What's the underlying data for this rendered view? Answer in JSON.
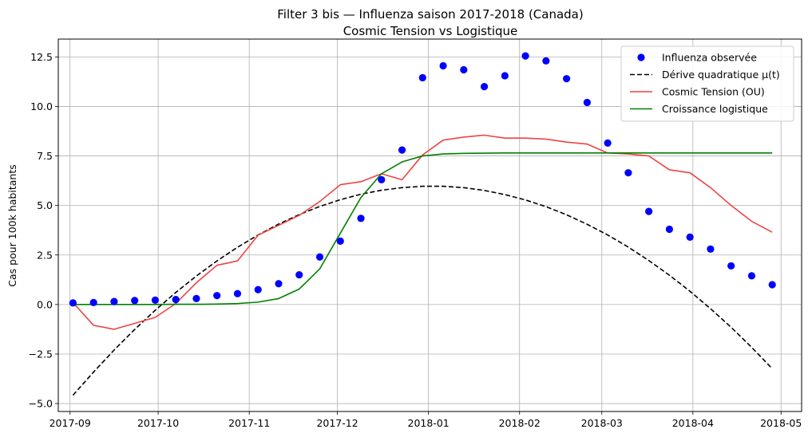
{
  "chart_data": {
    "type": "line",
    "title": "Filter 3 bis — Influenza saison 2017-2018 (Canada)",
    "subtitle": "Cosmic Tension vs Logistique",
    "xlabel": "",
    "ylabel": "Cas pour 100k habitants",
    "x_axis_type": "date",
    "xlim": [
      "2017-08-28",
      "2018-05-08"
    ],
    "ylim": [
      -5.4,
      13.4
    ],
    "x_ticks": [
      "2017-09",
      "2017-10",
      "2017-11",
      "2017-12",
      "2018-01",
      "2018-02",
      "2018-03",
      "2018-04",
      "2018-05"
    ],
    "x_tick_dates": [
      "2017-09-01",
      "2017-10-01",
      "2017-11-01",
      "2017-12-01",
      "2018-01-01",
      "2018-02-01",
      "2018-03-01",
      "2018-04-01",
      "2018-05-01"
    ],
    "y_ticks": [
      -5.0,
      -2.5,
      0.0,
      2.5,
      5.0,
      7.5,
      10.0,
      12.5
    ],
    "y_tick_labels": [
      "−5.0",
      "−2.5",
      "0.0",
      "2.5",
      "5.0",
      "7.5",
      "10.0",
      "12.5"
    ],
    "grid": true,
    "legend_position": "top-right",
    "x": [
      "2017-09-02",
      "2017-09-09",
      "2017-09-16",
      "2017-09-23",
      "2017-09-30",
      "2017-10-07",
      "2017-10-14",
      "2017-10-21",
      "2017-10-28",
      "2017-11-04",
      "2017-11-11",
      "2017-11-18",
      "2017-11-25",
      "2017-12-02",
      "2017-12-09",
      "2017-12-16",
      "2017-12-23",
      "2017-12-30",
      "2018-01-06",
      "2018-01-13",
      "2018-01-20",
      "2018-01-27",
      "2018-02-03",
      "2018-02-10",
      "2018-02-17",
      "2018-02-24",
      "2018-03-03",
      "2018-03-10",
      "2018-03-17",
      "2018-03-24",
      "2018-03-31",
      "2018-04-07",
      "2018-04-14",
      "2018-04-21",
      "2018-04-28"
    ],
    "series": [
      {
        "name": "Influenza observée",
        "kind": "scatter",
        "color": "#0000ff",
        "values": [
          0.08,
          0.1,
          0.15,
          0.2,
          0.22,
          0.25,
          0.3,
          0.45,
          0.55,
          0.75,
          1.05,
          1.5,
          2.4,
          3.2,
          4.35,
          6.3,
          7.8,
          11.45,
          12.05,
          11.85,
          11.0,
          11.55,
          12.55,
          12.3,
          11.4,
          10.2,
          8.15,
          6.65,
          4.7,
          3.8,
          3.4,
          2.8,
          1.95,
          1.45,
          1.0
        ]
      },
      {
        "name": "Dérive quadratique μ(t)",
        "kind": "line",
        "dash": "dashed",
        "color": "#000000",
        "values": [
          -4.58,
          -3.41,
          -2.3,
          -1.26,
          -0.29,
          0.61,
          1.44,
          2.2,
          2.89,
          3.51,
          4.06,
          4.54,
          4.95,
          5.29,
          5.57,
          5.77,
          5.9,
          5.97,
          5.97,
          5.9,
          5.76,
          5.55,
          5.28,
          4.94,
          4.53,
          4.05,
          3.51,
          2.9,
          2.22,
          1.48,
          0.67,
          -0.21,
          -1.15,
          -2.16,
          -3.24
        ]
      },
      {
        "name": "Cosmic Tension (OU)",
        "kind": "line",
        "color": "#ee4444",
        "values": [
          0.1,
          -1.05,
          -1.25,
          -0.95,
          -0.65,
          0.05,
          1.1,
          1.98,
          2.2,
          3.5,
          4.0,
          4.5,
          5.2,
          6.05,
          6.2,
          6.6,
          6.3,
          7.55,
          8.3,
          8.45,
          8.55,
          8.4,
          8.4,
          8.35,
          8.2,
          8.1,
          7.65,
          7.6,
          7.5,
          6.8,
          6.65,
          5.9,
          5.0,
          4.2,
          3.65
        ]
      },
      {
        "name": "Croissance logistique",
        "kind": "line",
        "color": "#008000",
        "values": [
          0.0,
          0.0,
          0.0,
          0.0,
          0.0,
          0.01,
          0.01,
          0.02,
          0.05,
          0.12,
          0.3,
          0.78,
          1.8,
          3.6,
          5.4,
          6.6,
          7.2,
          7.5,
          7.6,
          7.63,
          7.64,
          7.65,
          7.65,
          7.65,
          7.65,
          7.65,
          7.65,
          7.65,
          7.65,
          7.65,
          7.65,
          7.65,
          7.65,
          7.65,
          7.65
        ]
      }
    ]
  }
}
